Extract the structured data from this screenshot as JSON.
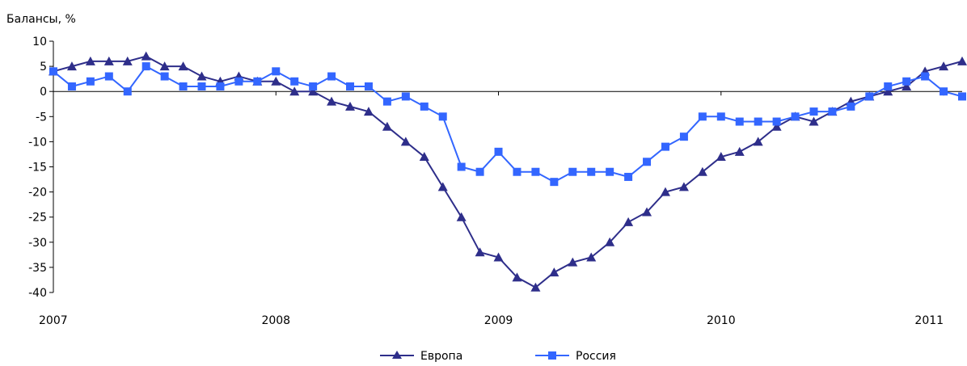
{
  "chart_data": {
    "type": "line",
    "ylabel": "Балансы, %",
    "ylim": [
      -40,
      10
    ],
    "yticks": [
      10,
      5,
      0,
      -5,
      -10,
      -15,
      -20,
      -25,
      -30,
      -35,
      -40
    ],
    "xticks": [
      "2007",
      "2008",
      "2009",
      "2010",
      "2011"
    ],
    "grid": false,
    "legend_position": "bottom-center",
    "series": [
      {
        "name": "Европа",
        "color": "#2e2e8a",
        "marker": "triangle",
        "values": [
          4,
          5,
          6,
          6,
          6,
          7,
          5,
          5,
          3,
          2,
          3,
          2,
          2,
          0,
          0,
          -2,
          -3,
          -4,
          -7,
          -10,
          -13,
          -19,
          -25,
          -32,
          -33,
          -37,
          -39,
          -36,
          -34,
          -33,
          -30,
          -26,
          -24,
          -20,
          -19,
          -16,
          -13,
          -12,
          -10,
          -7,
          -5,
          -6,
          -4,
          -2,
          -1,
          0,
          1,
          4,
          5,
          6
        ]
      },
      {
        "name": "Россия",
        "color": "#3366ff",
        "marker": "square",
        "values": [
          4,
          1,
          2,
          3,
          0,
          5,
          3,
          1,
          1,
          1,
          2,
          2,
          4,
          2,
          1,
          3,
          1,
          1,
          -2,
          -1,
          -3,
          -5,
          -15,
          -16,
          -12,
          -16,
          -16,
          -18,
          -16,
          -16,
          -16,
          -17,
          -14,
          -11,
          -9,
          -5,
          -5,
          -6,
          -6,
          -6,
          -5,
          -4,
          -4,
          -3,
          -1,
          1,
          2,
          3,
          0,
          -1
        ]
      }
    ]
  }
}
